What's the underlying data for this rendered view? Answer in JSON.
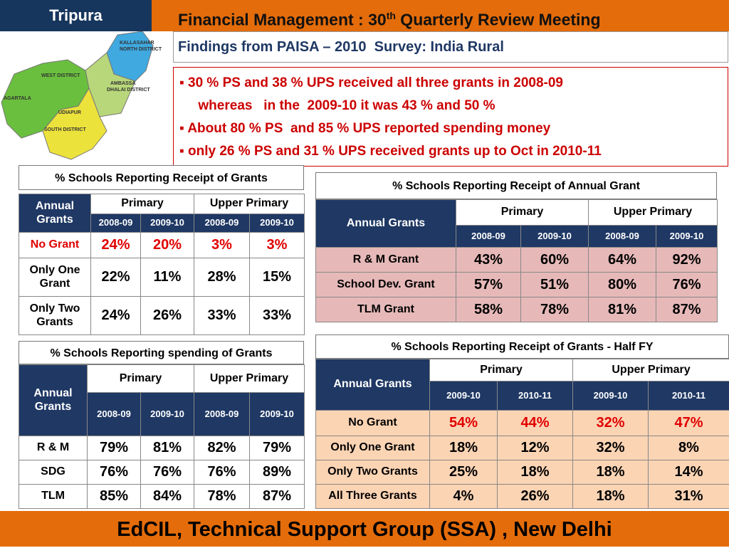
{
  "header": {
    "region": "Tripura",
    "title_main": "Financial Management : 30",
    "title_sup": "th",
    "title_rest": " Quarterly Review Meeting"
  },
  "subtitle": "Findings from PAISA – 2010  Survey: India Rural",
  "bullets": [
    [
      "30 % PS and 38 % UPS received all three grants in 2008-09",
      "whereas   in the  2009-10 it was 43 % and 50 %"
    ],
    [
      "About 80 % PS  and 85 % UPS reported spending money"
    ],
    [
      "only 26 % PS and 31 % UPS received grants up to Oct in 2010-11"
    ]
  ],
  "map": {
    "labels": [
      "KALLASAHAR",
      "NORTH DISTRICT",
      "WEST DISTRICT",
      "AMBASSA",
      "DHALAI DISTRICT",
      "AGARTALA",
      "UDIAPUR",
      "SOUTH DISTRICT"
    ]
  },
  "tables": [
    {
      "title": "% Schools Reporting Receipt of Grants",
      "row_header": "Annual Grants",
      "groups": [
        "Primary",
        "Upper Primary"
      ],
      "years": [
        "2008-09",
        "2009-10",
        "2008-09",
        "2009-10"
      ],
      "rows": [
        {
          "label": "No Grant",
          "values": [
            "24%",
            "20%",
            "3%",
            "3%"
          ]
        },
        {
          "label": "Only One Grant",
          "values": [
            "22%",
            "11%",
            "28%",
            "15%"
          ]
        },
        {
          "label": "Only Two Grants",
          "values": [
            "24%",
            "26%",
            "33%",
            "33%"
          ]
        }
      ]
    },
    {
      "title": "% Schools Reporting spending of Grants",
      "row_header": "Annual Grants",
      "groups": [
        "Primary",
        "Upper Primary"
      ],
      "years": [
        "2008-09",
        "2009-10",
        "2008-09",
        "2009-10"
      ],
      "rows": [
        {
          "label": "R & M",
          "values": [
            "79%",
            "81%",
            "82%",
            "79%"
          ]
        },
        {
          "label": "SDG",
          "values": [
            "76%",
            "76%",
            "76%",
            "89%"
          ]
        },
        {
          "label": "TLM",
          "values": [
            "85%",
            "84%",
            "78%",
            "87%"
          ]
        }
      ]
    },
    {
      "title": "% Schools Reporting Receipt of  Annual Grant",
      "row_header": "Annual Grants",
      "groups": [
        "Primary",
        "Upper Primary"
      ],
      "years": [
        "2008-09",
        "2009-10",
        "2008-09",
        "2009-10"
      ],
      "rows": [
        {
          "label": "R & M Grant",
          "values": [
            "43%",
            "60%",
            "64%",
            "92%"
          ]
        },
        {
          "label": "School Dev. Grant",
          "values": [
            "57%",
            "51%",
            "80%",
            "76%"
          ]
        },
        {
          "label": "TLM Grant",
          "values": [
            "58%",
            "78%",
            "81%",
            "87%"
          ]
        }
      ]
    },
    {
      "title": "% Schools Reporting Receipt of Grants - Half FY",
      "row_header": "Annual Grants",
      "groups": [
        "Primary",
        "Upper Primary"
      ],
      "years": [
        "2009-10",
        "2010-11",
        "2009-10",
        "2010-11"
      ],
      "rows": [
        {
          "label": "No Grant",
          "values": [
            "54%",
            "44%",
            "32%",
            "47%"
          ]
        },
        {
          "label": "Only One Grant",
          "values": [
            "18%",
            "12%",
            "32%",
            "8%"
          ]
        },
        {
          "label": "Only Two Grants",
          "values": [
            "25%",
            "18%",
            "18%",
            "14%"
          ]
        },
        {
          "label": "All Three Grants",
          "values": [
            "4%",
            "26%",
            "18%",
            "31%"
          ]
        }
      ]
    }
  ],
  "footer": "EdCIL, Technical Support Group (SSA) , New Delhi"
}
